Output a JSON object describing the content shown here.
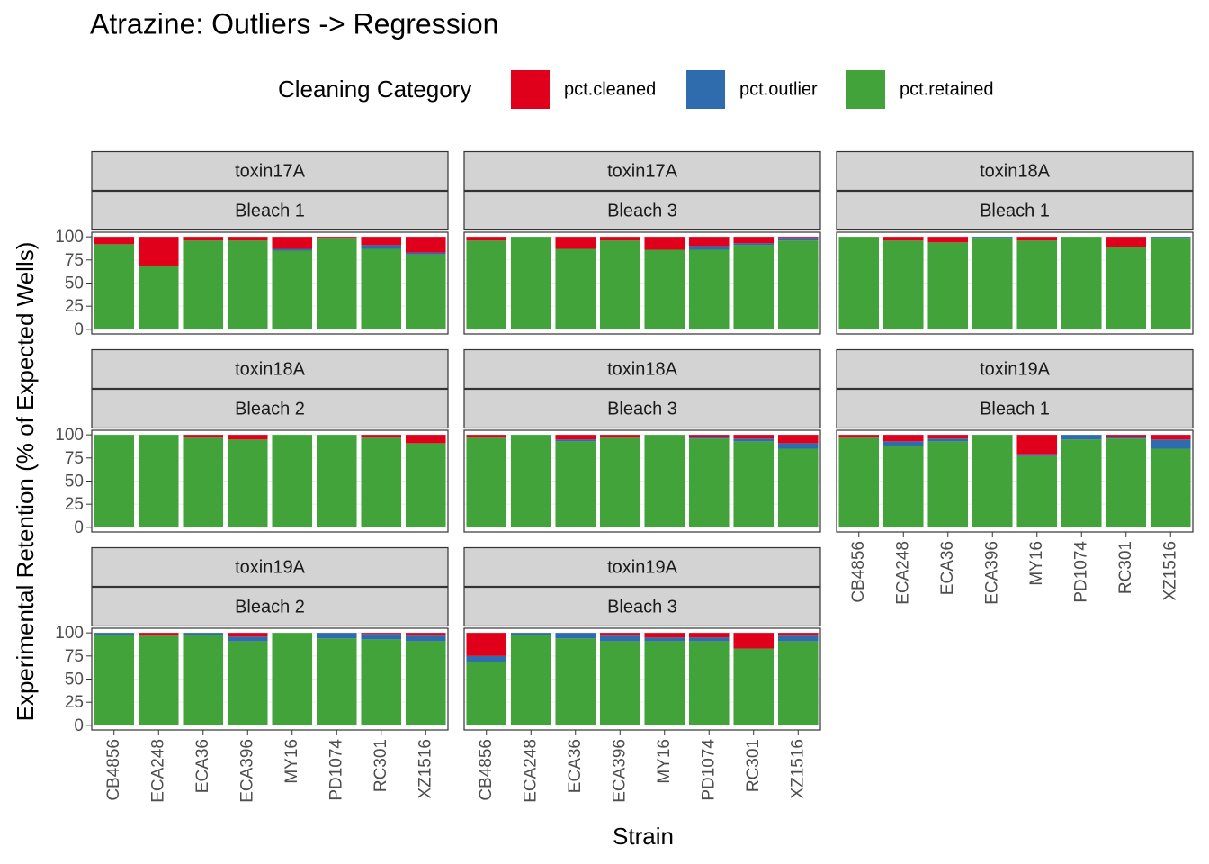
{
  "chart_data": {
    "type": "bar",
    "stacked": true,
    "title": "Atrazine: Outliers -> Regression",
    "legend_title": "Cleaning Category",
    "x_label": "Strain",
    "y_label": "Experimental Retention (% of Expected Wells)",
    "categories": [
      "CB4856",
      "ECA248",
      "ECA36",
      "ECA396",
      "MY16",
      "PD1074",
      "RC301",
      "XZ1516"
    ],
    "facets": [
      [
        "toxin17A",
        "Bleach 1"
      ],
      [
        "toxin17A",
        "Bleach 3"
      ],
      [
        "toxin18A",
        "Bleach 1"
      ],
      [
        "toxin18A",
        "Bleach 2"
      ],
      [
        "toxin18A",
        "Bleach 3"
      ],
      [
        "toxin19A",
        "Bleach 1"
      ],
      [
        "toxin19A",
        "Bleach 2"
      ],
      [
        "toxin19A",
        "Bleach 3"
      ]
    ],
    "series": [
      {
        "name": "pct.cleaned",
        "color": "#e0001b",
        "values": [
          [
            8,
            31,
            4,
            4,
            13,
            2,
            9,
            17
          ],
          [
            4,
            0,
            13,
            4,
            14,
            10,
            7,
            2
          ],
          [
            0,
            4,
            6,
            0,
            4,
            0,
            11,
            0
          ],
          [
            0,
            0,
            3,
            5,
            0,
            0,
            3,
            9
          ],
          [
            3,
            0,
            5,
            3,
            0,
            2,
            4,
            9
          ],
          [
            3,
            7,
            4,
            0,
            21,
            0,
            2,
            5
          ],
          [
            0,
            3,
            0,
            4,
            0,
            0,
            1,
            3
          ],
          [
            25,
            0,
            0,
            3,
            5,
            5,
            17,
            3
          ]
        ]
      },
      {
        "name": "pct.outlier",
        "color": "#2e6cad",
        "values": [
          [
            0,
            0,
            0,
            0,
            2,
            0,
            4,
            2
          ],
          [
            0,
            0,
            0,
            0,
            0,
            4,
            2,
            2
          ],
          [
            0,
            0,
            0,
            2,
            0,
            0,
            0,
            2
          ],
          [
            0,
            0,
            0,
            0,
            0,
            0,
            0,
            0
          ],
          [
            0,
            0,
            2,
            0,
            0,
            2,
            3,
            6
          ],
          [
            0,
            5,
            3,
            0,
            2,
            5,
            2,
            10
          ],
          [
            2,
            0,
            2,
            5,
            0,
            6,
            6,
            6
          ],
          [
            6,
            2,
            6,
            6,
            4,
            4,
            0,
            6
          ]
        ]
      },
      {
        "name": "pct.retained",
        "color": "#41a33a",
        "values": [
          [
            92,
            69,
            96,
            96,
            85,
            98,
            87,
            81
          ],
          [
            96,
            100,
            87,
            96,
            86,
            86,
            91,
            96
          ],
          [
            100,
            96,
            94,
            98,
            96,
            100,
            89,
            98
          ],
          [
            100,
            100,
            97,
            95,
            100,
            100,
            97,
            91
          ],
          [
            97,
            100,
            93,
            97,
            100,
            96,
            93,
            85
          ],
          [
            97,
            88,
            93,
            100,
            77,
            95,
            96,
            85
          ],
          [
            98,
            97,
            98,
            91,
            100,
            94,
            93,
            91
          ],
          [
            69,
            98,
            94,
            91,
            91,
            91,
            83,
            91
          ]
        ]
      }
    ],
    "ylim": [
      -5,
      105
    ],
    "yticks": [
      0,
      25,
      50,
      75,
      100
    ],
    "grid": true,
    "columns": 3
  }
}
